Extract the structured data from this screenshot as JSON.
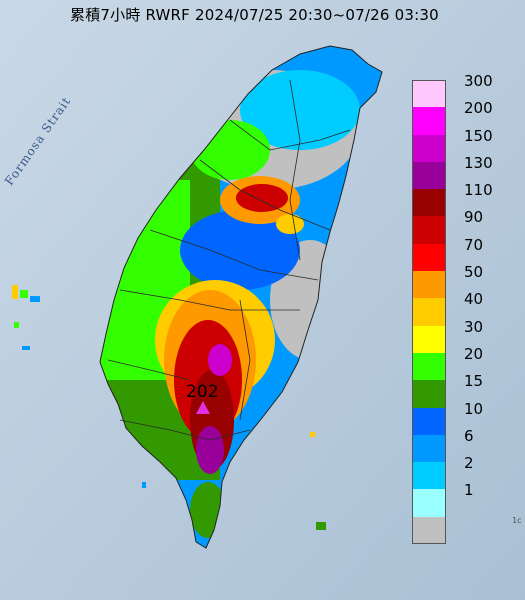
{
  "title": "累積7小時 RWRF 2024/07/25 20:30~07/26 03:30",
  "strait_label": "Formosa Strait",
  "peak": {
    "value": "202",
    "marker_color": "#e030e0"
  },
  "edge_label": "1c",
  "legend": [
    {
      "label": "300",
      "color": "#ffc8ff"
    },
    {
      "label": "200",
      "color": "#ff00ff"
    },
    {
      "label": "150",
      "color": "#cc00cc"
    },
    {
      "label": "130",
      "color": "#990099"
    },
    {
      "label": "110",
      "color": "#990000"
    },
    {
      "label": "90",
      "color": "#cc0000"
    },
    {
      "label": "70",
      "color": "#ff0000"
    },
    {
      "label": "50",
      "color": "#ff9900"
    },
    {
      "label": "40",
      "color": "#ffcc00"
    },
    {
      "label": "30",
      "color": "#ffff00"
    },
    {
      "label": "20",
      "color": "#33ff00"
    },
    {
      "label": "15",
      "color": "#339900"
    },
    {
      "label": "10",
      "color": "#0066ff"
    },
    {
      "label": "6",
      "color": "#0099ff"
    },
    {
      "label": "2",
      "color": "#00ccff"
    },
    {
      "label": "1",
      "color": "#99ffff"
    },
    {
      "label": "",
      "color": "#c0c0c0"
    }
  ]
}
